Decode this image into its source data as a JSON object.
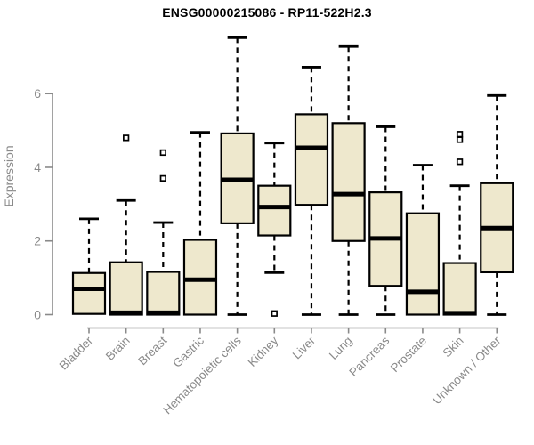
{
  "chart_data": {
    "type": "boxplot",
    "title": "ENSG00000215086 - RP11-522H2.3",
    "ylabel": "Expression",
    "xlabel": "",
    "ylim": [
      0,
      7.8
    ],
    "yticks": [
      0,
      2,
      4,
      6
    ],
    "grid": false,
    "legend": "none",
    "categories": [
      "Bladder",
      "Brain",
      "Breast",
      "Gastric",
      "Hematopoietic cells",
      "Kidney",
      "Liver",
      "Lung",
      "Pancreas",
      "Prostate",
      "Skin",
      "Unknown / Other"
    ],
    "series": [
      {
        "category": "Bladder",
        "min": 0.02,
        "q1": 0.02,
        "median": 0.7,
        "q3": 1.13,
        "max": 2.6,
        "outliers": []
      },
      {
        "category": "Brain",
        "min": 0.0,
        "q1": 0.0,
        "median": 0.05,
        "q3": 1.42,
        "max": 3.1,
        "outliers": [
          4.8
        ]
      },
      {
        "category": "Breast",
        "min": 0.0,
        "q1": 0.0,
        "median": 0.05,
        "q3": 1.16,
        "max": 2.5,
        "outliers": [
          3.7,
          4.4
        ]
      },
      {
        "category": "Gastric",
        "min": 0.0,
        "q1": 0.0,
        "median": 0.95,
        "q3": 2.03,
        "max": 4.95,
        "outliers": []
      },
      {
        "category": "Hematopoietic cells",
        "min": 0.0,
        "q1": 2.48,
        "median": 3.66,
        "q3": 4.92,
        "max": 7.52,
        "outliers": []
      },
      {
        "category": "Kidney",
        "min": 1.14,
        "q1": 2.15,
        "median": 2.92,
        "q3": 3.5,
        "max": 4.66,
        "outliers": [
          0.03
        ]
      },
      {
        "category": "Liver",
        "min": 0.0,
        "q1": 2.98,
        "median": 4.53,
        "q3": 5.44,
        "max": 6.72,
        "outliers": []
      },
      {
        "category": "Lung",
        "min": 0.0,
        "q1": 2.0,
        "median": 3.27,
        "q3": 5.2,
        "max": 7.28,
        "outliers": []
      },
      {
        "category": "Pancreas",
        "min": 0.0,
        "q1": 0.78,
        "median": 2.07,
        "q3": 3.32,
        "max": 5.1,
        "outliers": []
      },
      {
        "category": "Prostate",
        "min": 0.0,
        "q1": 0.0,
        "median": 0.62,
        "q3": 2.75,
        "max": 4.06,
        "outliers": []
      },
      {
        "category": "Skin",
        "min": 0.0,
        "q1": 0.0,
        "median": 0.04,
        "q3": 1.4,
        "max": 3.5,
        "outliers": [
          4.15,
          4.75,
          4.9
        ]
      },
      {
        "category": "Unknown / Other",
        "min": 0.0,
        "q1": 1.15,
        "median": 2.35,
        "q3": 3.57,
        "max": 5.95,
        "outliers": []
      }
    ],
    "colors": {
      "box_fill": "#EEE8CD",
      "box_border": "#000000",
      "median": "#000000",
      "whisker": "#000000",
      "outlier_fill": "#FFFFFF",
      "axis": "#8A8A8A",
      "tick_label": "#8A8A8A",
      "title": "#000000",
      "background": "#FFFFFF"
    }
  }
}
